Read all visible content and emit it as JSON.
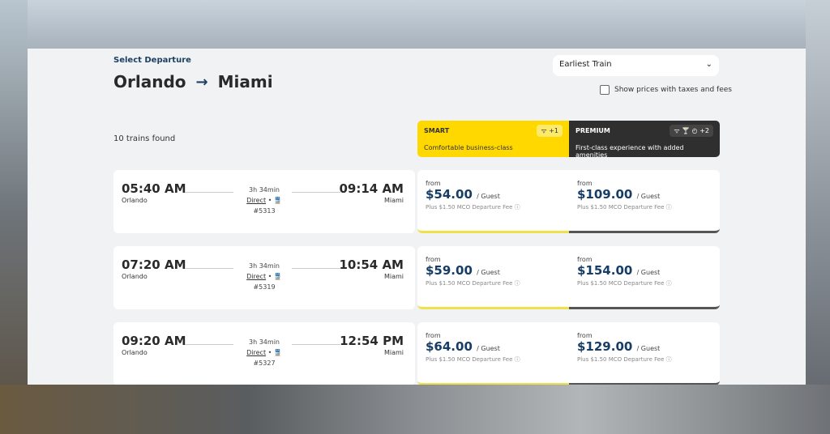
{
  "header": {
    "label": "Select Departure",
    "origin": "Orlando",
    "arrow": "→",
    "destination": "Miami"
  },
  "sort": {
    "selected": "Earliest Train",
    "chevron": "⌄"
  },
  "tax_toggle": {
    "label": "Show prices with taxes and fees",
    "checked": false
  },
  "results_count": "10 trains found",
  "classes": [
    {
      "name": "SMART",
      "desc": "Comfortable business-class",
      "amenities": "ᯤ +1",
      "color": "#ffd800"
    },
    {
      "name": "PREMIUM",
      "desc": "First-class experience with added amenities",
      "amenities": "ᯤ 🍸 ◴ +2",
      "color": "#2f2f2f"
    }
  ],
  "trains": [
    {
      "dep": "05:40 AM",
      "from": "Orlando",
      "arr": "09:14 AM",
      "to": "Miami",
      "duration": "3h 34min",
      "type": "Direct",
      "sep": " • 🚆 ",
      "number": "#5313",
      "smart_from": "from",
      "smart_price": "$54.00",
      "premium_from": "from",
      "premium_price": "$109.00",
      "per": "/ Guest",
      "fee": "Plus $1.50 MCO Departure Fee ⓘ"
    },
    {
      "dep": "07:20 AM",
      "from": "Orlando",
      "arr": "10:54 AM",
      "to": "Miami",
      "duration": "3h 34min",
      "type": "Direct",
      "sep": " • 🚆 ",
      "number": "#5319",
      "smart_from": "from",
      "smart_price": "$59.00",
      "premium_from": "from",
      "premium_price": "$154.00",
      "per": "/ Guest",
      "fee": "Plus $1.50 MCO Departure Fee ⓘ"
    },
    {
      "dep": "09:20 AM",
      "from": "Orlando",
      "arr": "12:54 PM",
      "to": "Miami",
      "duration": "3h 34min",
      "type": "Direct",
      "sep": " • 🚆 ",
      "number": "#5327",
      "smart_from": "from",
      "smart_price": "$64.00",
      "premium_from": "from",
      "premium_price": "$129.00",
      "per": "/ Guest",
      "fee": "Plus $1.50 MCO Departure Fee ⓘ"
    }
  ]
}
